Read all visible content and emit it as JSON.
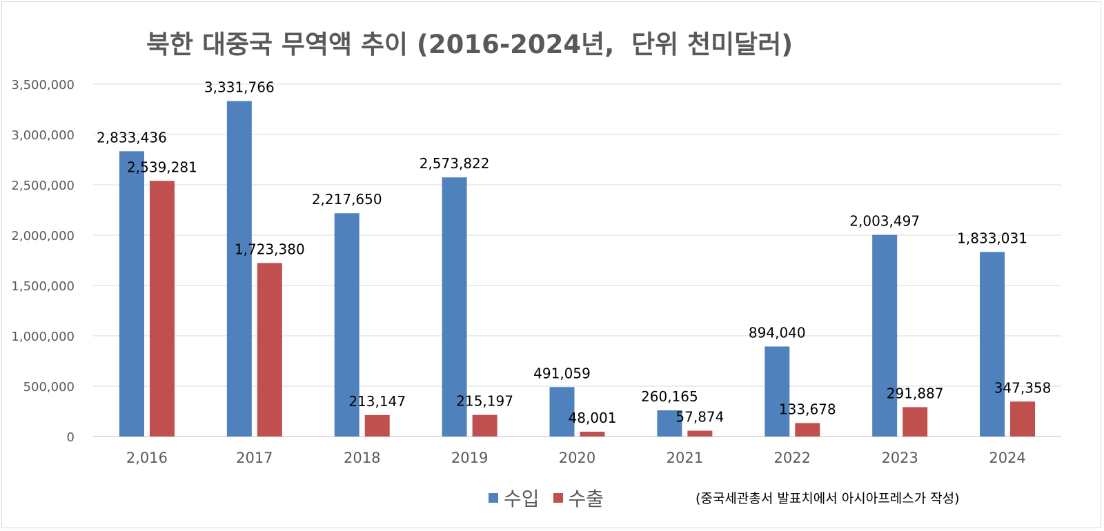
{
  "chart_data": {
    "type": "bar",
    "title": "북한 대중국 무역액 추이 (2016-2024년,",
    "title_suffix": "단위 천미달러)",
    "categories": [
      "2,016",
      "2017",
      "2018",
      "2019",
      "2020",
      "2021",
      "2022",
      "2023",
      "2024"
    ],
    "series": [
      {
        "name": "수입",
        "color": "#4f81bd",
        "values": [
          2833436,
          3331766,
          2217650,
          2573822,
          491059,
          260165,
          894040,
          2003497,
          1833031
        ]
      },
      {
        "name": "수출",
        "color": "#c0504d",
        "values": [
          2539281,
          1723380,
          213147,
          215197,
          48001,
          57874,
          133678,
          291887,
          347358
        ]
      }
    ],
    "ylim": [
      0,
      3500000
    ],
    "yticks": [
      0,
      500000,
      1000000,
      1500000,
      2000000,
      2500000,
      3000000,
      3500000
    ],
    "ytick_labels": [
      "0",
      "500,000",
      "1,000,000",
      "1,500,000",
      "2,000,000",
      "2,500,000",
      "3,000,000",
      "3,500,000"
    ],
    "grid": true,
    "legend_position": "bottom",
    "source_note": "(중국세관총서 발표치에서 아시아프레스가 작성)"
  }
}
